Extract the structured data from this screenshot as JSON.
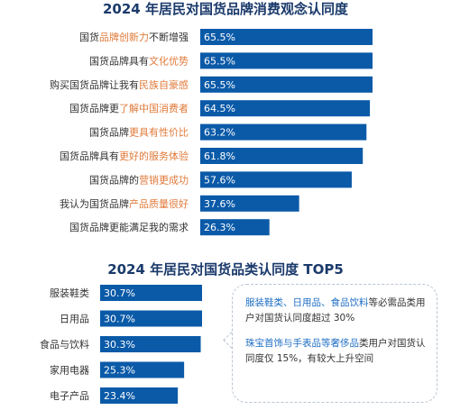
{
  "colors": {
    "bar": "#0b5aa8",
    "highlight": "#e07a3a",
    "title": "#1a3a6b",
    "note_highlight": "#1f6fc4"
  },
  "chart_data": [
    {
      "type": "bar",
      "orientation": "horizontal",
      "title": "2024 年居民对国货品牌消费观念认同度",
      "categories": [
        {
          "segments": [
            {
              "text": "国货"
            },
            {
              "text": "品牌创新力",
              "hl": true
            },
            {
              "text": "不断增强"
            }
          ]
        },
        {
          "segments": [
            {
              "text": "国货品牌具有"
            },
            {
              "text": "文化优势",
              "hl": true
            }
          ]
        },
        {
          "segments": [
            {
              "text": "购买国货品牌让我有"
            },
            {
              "text": "民族自豪感",
              "hl": true
            }
          ]
        },
        {
          "segments": [
            {
              "text": "国货品牌更"
            },
            {
              "text": "了解中国消费者",
              "hl": true
            }
          ]
        },
        {
          "segments": [
            {
              "text": "国货品牌"
            },
            {
              "text": "更具有性价比",
              "hl": true
            }
          ]
        },
        {
          "segments": [
            {
              "text": "国货品牌具有"
            },
            {
              "text": "更好的服务体验",
              "hl": true
            }
          ]
        },
        {
          "segments": [
            {
              "text": "国货品牌的"
            },
            {
              "text": "营销更成功",
              "hl": true
            }
          ]
        },
        {
          "segments": [
            {
              "text": "我认为国货品牌"
            },
            {
              "text": "产品质量很好",
              "hl": true
            }
          ]
        },
        {
          "segments": [
            {
              "text": "国货品牌更能满足我的需求"
            }
          ]
        }
      ],
      "values": [
        65.5,
        65.5,
        65.5,
        64.5,
        63.2,
        61.8,
        57.6,
        37.6,
        26.3
      ],
      "value_labels": [
        "65.5%",
        "65.5%",
        "65.5%",
        "64.5%",
        "63.2%",
        "61.8%",
        "57.6%",
        "37.6%",
        "26.3%"
      ],
      "xlim": [
        0,
        70
      ]
    },
    {
      "type": "bar",
      "orientation": "horizontal",
      "title": "2024 年居民对国货品类认同度 TOP5",
      "categories": [
        {
          "segments": [
            {
              "text": "服装鞋类"
            }
          ]
        },
        {
          "segments": [
            {
              "text": "日用品"
            }
          ]
        },
        {
          "segments": [
            {
              "text": "食品与饮料"
            }
          ]
        },
        {
          "segments": [
            {
              "text": "家用电器"
            }
          ]
        },
        {
          "segments": [
            {
              "text": "电子产品"
            }
          ]
        }
      ],
      "values": [
        30.7,
        30.7,
        30.3,
        25.3,
        23.4
      ],
      "value_labels": [
        "30.7%",
        "30.7%",
        "30.3%",
        "25.3%",
        "23.4%"
      ],
      "xlim": [
        0,
        40
      ]
    }
  ],
  "note": {
    "p1": {
      "hl": "服装鞋类、日用品、食品饮料",
      "rest": "等必需品类用户对国货认同度超过 30%"
    },
    "p2": {
      "hl": "珠宝首饰与手表品等奢侈品",
      "rest": "类用户对国货认同度仅 15%，有较大上升空间"
    }
  }
}
